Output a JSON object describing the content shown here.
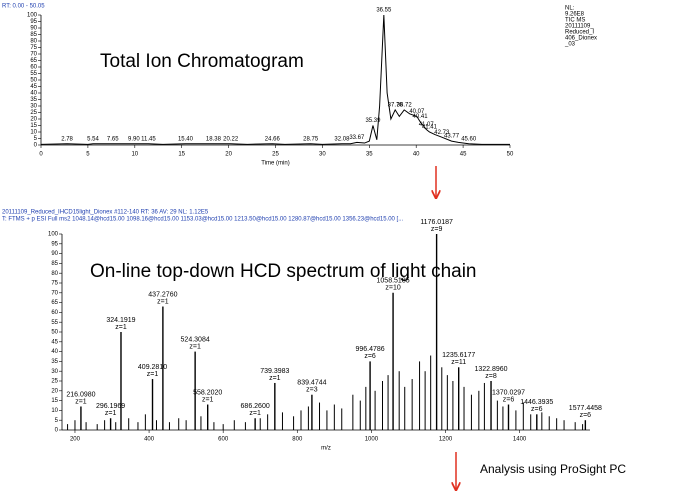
{
  "chart_data": [
    {
      "type": "line",
      "header": "RT: 0.00 - 50.05",
      "title": "Total Ion Chromatogram",
      "info_lines": [
        "NL:",
        "9.26E8",
        "TIC  MS",
        "20111109_",
        "Reduced_I",
        "406_Dionex",
        "_03"
      ],
      "x_label": "Time (min)",
      "color": "#000000",
      "x": [
        0,
        2.78,
        5,
        5.54,
        7.65,
        9.9,
        11.45,
        13,
        15.4,
        18.38,
        20.22,
        22,
        24.66,
        26,
        28.75,
        30,
        32.08,
        33,
        33.67,
        34.5,
        35,
        35.39,
        35.8,
        36.1,
        36.55,
        36.9,
        37.3,
        37.76,
        38.2,
        38.72,
        39.3,
        40.07,
        40.41,
        41.07,
        41.41,
        42,
        42.73,
        43.77,
        44.5,
        45.6,
        47,
        50
      ],
      "values": [
        0.5,
        1,
        0.5,
        1,
        1,
        1,
        1,
        0.5,
        1,
        1,
        1,
        0.5,
        1,
        0.5,
        1,
        0.5,
        1,
        1,
        2,
        1.5,
        3,
        15,
        4,
        30,
        100,
        40,
        20,
        27,
        22,
        27,
        24,
        22,
        18,
        12,
        10,
        8,
        6,
        3,
        2,
        1,
        0.5,
        0.5
      ],
      "xlim": [
        0,
        50
      ],
      "ylim": [
        0,
        100
      ],
      "xticks": [
        0,
        5,
        10,
        15,
        20,
        25,
        30,
        35,
        40,
        45,
        50
      ],
      "yticks": [
        0,
        5,
        10,
        15,
        20,
        25,
        30,
        35,
        40,
        45,
        50,
        55,
        60,
        65,
        70,
        75,
        80,
        85,
        90,
        95,
        100
      ],
      "annotations": [
        {
          "x": 2.78,
          "y": 1,
          "label": "2.78"
        },
        {
          "x": 5.54,
          "y": 1,
          "label": "5.54"
        },
        {
          "x": 7.65,
          "y": 1,
          "label": "7.65"
        },
        {
          "x": 9.9,
          "y": 1,
          "label": "9.90"
        },
        {
          "x": 11.45,
          "y": 1,
          "label": "11.45"
        },
        {
          "x": 15.4,
          "y": 1,
          "label": "15.40"
        },
        {
          "x": 18.38,
          "y": 1,
          "label": "18.38"
        },
        {
          "x": 20.22,
          "y": 1,
          "label": "20.22"
        },
        {
          "x": 24.66,
          "y": 1,
          "label": "24.66"
        },
        {
          "x": 28.75,
          "y": 1,
          "label": "28.75"
        },
        {
          "x": 32.08,
          "y": 1,
          "label": "32.08"
        },
        {
          "x": 33.67,
          "y": 2,
          "label": "33.67"
        },
        {
          "x": 35.39,
          "y": 15,
          "label": "35.39"
        },
        {
          "x": 36.55,
          "y": 100,
          "label": "36.55"
        },
        {
          "x": 37.76,
          "y": 27,
          "label": "37.76"
        },
        {
          "x": 38.72,
          "y": 27,
          "label": "38.72"
        },
        {
          "x": 40.07,
          "y": 22,
          "label": "40.07"
        },
        {
          "x": 40.41,
          "y": 18,
          "label": "40.41"
        },
        {
          "x": 41.07,
          "y": 12,
          "label": "41.07"
        },
        {
          "x": 41.41,
          "y": 10,
          "label": "41.41"
        },
        {
          "x": 42.73,
          "y": 6,
          "label": "42.73"
        },
        {
          "x": 43.77,
          "y": 3,
          "label": "43.77"
        },
        {
          "x": 45.6,
          "y": 1,
          "label": "45.60"
        }
      ]
    },
    {
      "type": "stem",
      "header_lines": [
        "20111109_Reduced_IHCD15light_Dionex #112-140  RT: 36  AV: 29  NL: 1.12E5",
        "T: FTMS + p ESI Full ms2 1048.14@hcd15.00 1098.16@hcd15.00 1153.03@hcd15.00 1213.50@hcd15.00 1280.87@hcd15.00 1356.23@hcd15.00 [..."
      ],
      "title": "On-line top-down HCD spectrum of light chain",
      "x_label": "m/z",
      "color": "#000000",
      "xlim": [
        165,
        1590
      ],
      "ylim": [
        0,
        100
      ],
      "xticks": [
        200,
        400,
        600,
        800,
        1000,
        1200,
        1400
      ],
      "yticks": [
        0,
        5,
        10,
        15,
        20,
        25,
        30,
        35,
        40,
        45,
        50,
        55,
        60,
        65,
        70,
        75,
        80,
        85,
        90,
        95,
        100
      ],
      "peaks": [
        {
          "mz": 216.098,
          "intensity": 12,
          "label": "216.0980",
          "charge": "z=1"
        },
        {
          "mz": 296.1969,
          "intensity": 6,
          "label": "296.1969",
          "charge": "z=1"
        },
        {
          "mz": 324.1919,
          "intensity": 50,
          "label": "324.1919",
          "charge": "z=1"
        },
        {
          "mz": 409.281,
          "intensity": 26,
          "label": "409.2810",
          "charge": "z=1"
        },
        {
          "mz": 437.276,
          "intensity": 63,
          "label": "437.2760",
          "charge": "z=1"
        },
        {
          "mz": 524.3084,
          "intensity": 40,
          "label": "524.3084",
          "charge": "z=1"
        },
        {
          "mz": 558.202,
          "intensity": 13,
          "label": "558.2020",
          "charge": "z=1"
        },
        {
          "mz": 686.26,
          "intensity": 6,
          "label": "686.2600",
          "charge": "z=1"
        },
        {
          "mz": 739.3983,
          "intensity": 24,
          "label": "739.3983",
          "charge": "z=1"
        },
        {
          "mz": 839.4744,
          "intensity": 18,
          "label": "839.4744",
          "charge": "z=3"
        },
        {
          "mz": 996.4786,
          "intensity": 35,
          "label": "996.4786",
          "charge": "z=6"
        },
        {
          "mz": 1058.5185,
          "intensity": 70,
          "label": "1058.5185",
          "charge": "z=10"
        },
        {
          "mz": 1176.0187,
          "intensity": 100,
          "label": "1176.0187",
          "charge": "z=9"
        },
        {
          "mz": 1235.6177,
          "intensity": 32,
          "label": "1235.6177",
          "charge": "z=11"
        },
        {
          "mz": 1322.896,
          "intensity": 25,
          "label": "1322.8960",
          "charge": "z=8"
        },
        {
          "mz": 1370.0297,
          "intensity": 13,
          "label": "1370.0297",
          "charge": "z=6"
        },
        {
          "mz": 1446.3935,
          "intensity": 8,
          "label": "1446.3935",
          "charge": "z=6"
        },
        {
          "mz": 1577.4458,
          "intensity": 5,
          "label": "1577.4458",
          "charge": "z=6"
        }
      ],
      "minor_peaks": {
        "mz": [
          180,
          200,
          230,
          260,
          280,
          310,
          345,
          370,
          390,
          420,
          455,
          480,
          500,
          540,
          575,
          600,
          630,
          660,
          700,
          720,
          760,
          790,
          810,
          830,
          860,
          880,
          900,
          920,
          950,
          970,
          985,
          1010,
          1030,
          1045,
          1075,
          1090,
          1110,
          1130,
          1145,
          1160,
          1190,
          1205,
          1220,
          1250,
          1270,
          1290,
          1305,
          1340,
          1355,
          1390,
          1410,
          1430,
          1460,
          1480,
          1500,
          1520,
          1550,
          1570
        ],
        "intensity": [
          3,
          5,
          4,
          3,
          5,
          4,
          6,
          4,
          8,
          5,
          4,
          6,
          5,
          7,
          4,
          3,
          5,
          4,
          6,
          8,
          9,
          7,
          10,
          12,
          14,
          10,
          13,
          11,
          18,
          15,
          22,
          20,
          25,
          28,
          30,
          22,
          26,
          35,
          30,
          38,
          32,
          28,
          25,
          22,
          18,
          20,
          24,
          15,
          12,
          10,
          14,
          8,
          9,
          7,
          6,
          5,
          4,
          3
        ]
      }
    }
  ],
  "footer": "Analysis using ProSight PC"
}
